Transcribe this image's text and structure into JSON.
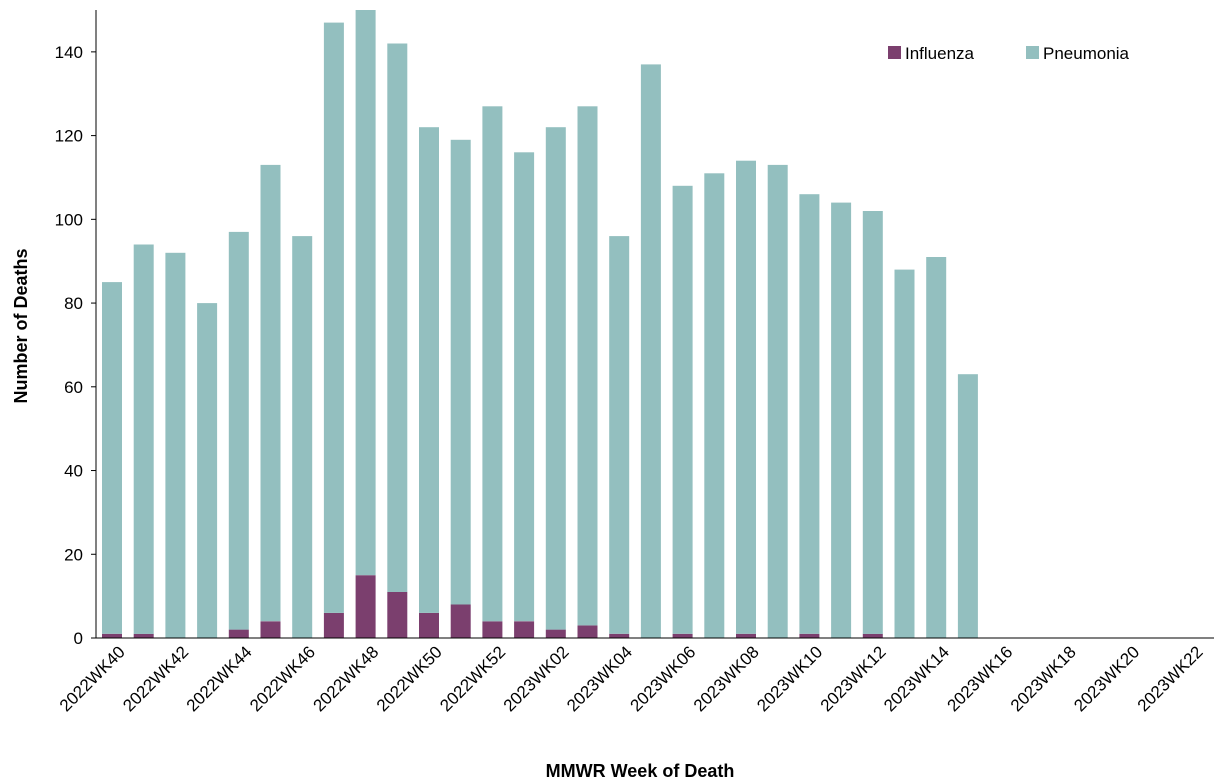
{
  "chart_data": {
    "type": "bar",
    "stacked": true,
    "xlabel": "MMWR Week of Death",
    "ylabel": "Number of Deaths",
    "ylim": [
      0,
      150
    ],
    "yticks": [
      0,
      20,
      40,
      60,
      80,
      100,
      120,
      140
    ],
    "grid": false,
    "legend_position": "top-right",
    "categories": [
      "2022WK40",
      "2022WK41",
      "2022WK42",
      "2022WK43",
      "2022WK44",
      "2022WK45",
      "2022WK46",
      "2022WK47",
      "2022WK48",
      "2022WK49",
      "2022WK50",
      "2022WK51",
      "2022WK52",
      "2023WK01",
      "2023WK02",
      "2023WK03",
      "2023WK04",
      "2023WK05",
      "2023WK06",
      "2023WK07",
      "2023WK08",
      "2023WK09",
      "2023WK10",
      "2023WK11",
      "2023WK12",
      "2023WK13",
      "2023WK14",
      "2023WK15",
      "2023WK16",
      "2023WK17",
      "2023WK18",
      "2023WK19",
      "2023WK20",
      "2023WK21",
      "2023WK22"
    ],
    "tick_labels": [
      "2022WK40",
      "2022WK42",
      "2022WK44",
      "2022WK46",
      "2022WK48",
      "2022WK50",
      "2022WK52",
      "2023WK02",
      "2023WK04",
      "2023WK06",
      "2023WK08",
      "2023WK10",
      "2023WK12",
      "2023WK14",
      "2023WK16",
      "2023WK18",
      "2023WK20",
      "2023WK22"
    ],
    "series": [
      {
        "name": "Influenza",
        "color": "#7b3f6e",
        "values": [
          1,
          1,
          0,
          0,
          2,
          4,
          0,
          6,
          15,
          11,
          6,
          8,
          4,
          4,
          2,
          3,
          1,
          0,
          1,
          0,
          1,
          0,
          1,
          0,
          1,
          0,
          0,
          0,
          0,
          0,
          0,
          0,
          0,
          0,
          0
        ]
      },
      {
        "name": "Pneumonia",
        "color": "#93bfbf",
        "values": [
          84,
          93,
          92,
          80,
          95,
          109,
          96,
          141,
          135,
          131,
          116,
          111,
          123,
          112,
          120,
          124,
          95,
          137,
          107,
          111,
          113,
          113,
          105,
          104,
          101,
          88,
          91,
          63,
          0,
          0,
          0,
          0,
          0,
          0,
          0
        ]
      }
    ]
  }
}
